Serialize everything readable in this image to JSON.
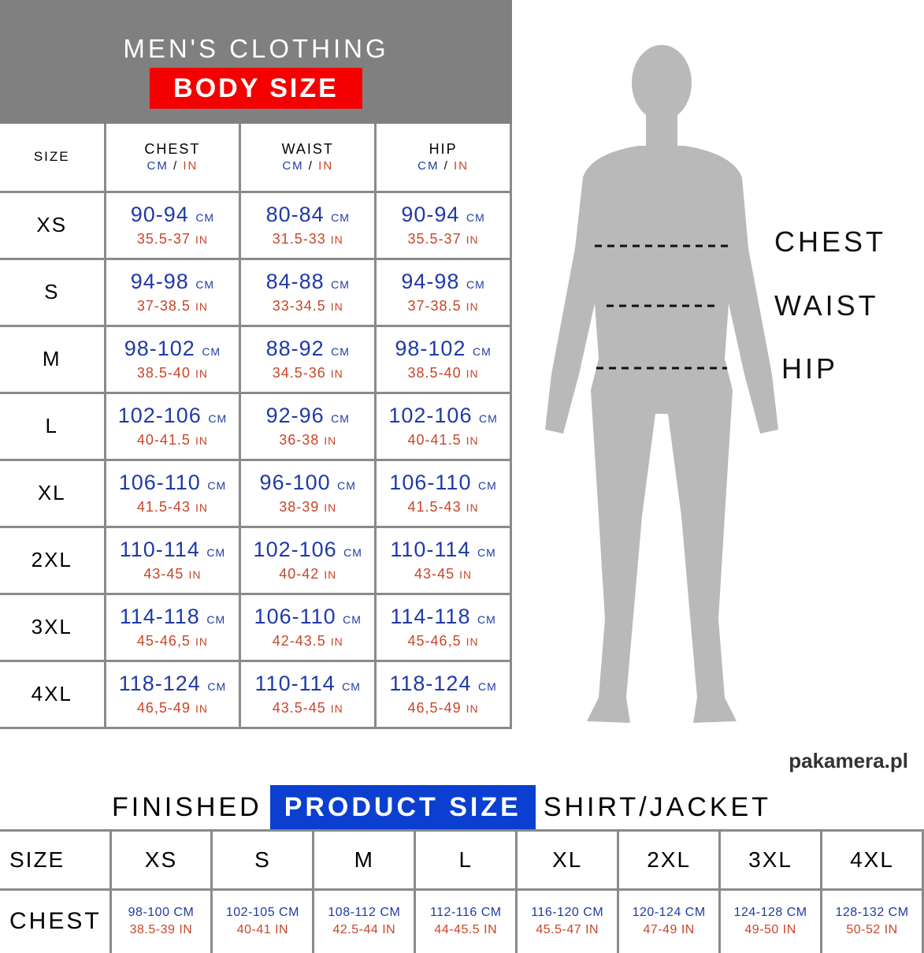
{
  "header": {
    "line1": "MEN'S CLOTHING",
    "line2": "BODY SIZE",
    "accent": "#f50000"
  },
  "body_table": {
    "headers": [
      "SIZE",
      "CHEST",
      "WAIST",
      "HIP"
    ],
    "unit_cm": "CM",
    "unit_sep": " / ",
    "unit_in": "IN",
    "rows": [
      {
        "size": "XS",
        "cells": [
          [
            "90-94",
            "35.5-37"
          ],
          [
            "80-84",
            "31.5-33"
          ],
          [
            "90-94",
            "35.5-37"
          ]
        ]
      },
      {
        "size": "S",
        "cells": [
          [
            "94-98",
            "37-38.5"
          ],
          [
            "84-88",
            "33-34.5"
          ],
          [
            "94-98",
            "37-38.5"
          ]
        ]
      },
      {
        "size": "M",
        "cells": [
          [
            "98-102",
            "38.5-40"
          ],
          [
            "88-92",
            "34.5-36"
          ],
          [
            "98-102",
            "38.5-40"
          ]
        ]
      },
      {
        "size": "L",
        "cells": [
          [
            "102-106",
            "40-41.5"
          ],
          [
            "92-96",
            "36-38"
          ],
          [
            "102-106",
            "40-41.5"
          ]
        ]
      },
      {
        "size": "XL",
        "cells": [
          [
            "106-110",
            "41.5-43"
          ],
          [
            "96-100",
            "38-39"
          ],
          [
            "106-110",
            "41.5-43"
          ]
        ]
      },
      {
        "size": "2XL",
        "cells": [
          [
            "110-114",
            "43-45"
          ],
          [
            "102-106",
            "40-42"
          ],
          [
            "110-114",
            "43-45"
          ]
        ]
      },
      {
        "size": "3XL",
        "cells": [
          [
            "114-118",
            "45-46,5"
          ],
          [
            "106-110",
            "42-43.5"
          ],
          [
            "114-118",
            "45-46,5"
          ]
        ]
      },
      {
        "size": "4XL",
        "cells": [
          [
            "118-124",
            "46,5-49"
          ],
          [
            "110-114",
            "43.5-45"
          ],
          [
            "118-124",
            "46,5-49"
          ]
        ]
      }
    ]
  },
  "figure": {
    "labels": [
      "CHEST",
      "WAIST",
      "HIP"
    ],
    "color": "#b9b9b9"
  },
  "product": {
    "title_before": "FINISHED",
    "title_highlight": "PRODUCT SIZE",
    "title_after": "SHIRT/JACKET",
    "accent": "#0a3fd0",
    "size_label": "SIZE",
    "chest_label": "CHEST",
    "sizes": [
      "XS",
      "S",
      "M",
      "L",
      "XL",
      "2XL",
      "3XL",
      "4XL"
    ],
    "chest": [
      [
        "98-100 CM",
        "38.5-39 IN"
      ],
      [
        "102-105 CM",
        "40-41 IN"
      ],
      [
        "108-112 CM",
        "42.5-44 IN"
      ],
      [
        "112-116 CM",
        "44-45.5 IN"
      ],
      [
        "116-120 CM",
        "45.5-47 IN"
      ],
      [
        "120-124 CM",
        "47-49 IN"
      ],
      [
        "124-128 CM",
        "49-50 IN"
      ],
      [
        "128-132 CM",
        "50-52 IN"
      ]
    ]
  },
  "watermark": "pakamera.pl"
}
